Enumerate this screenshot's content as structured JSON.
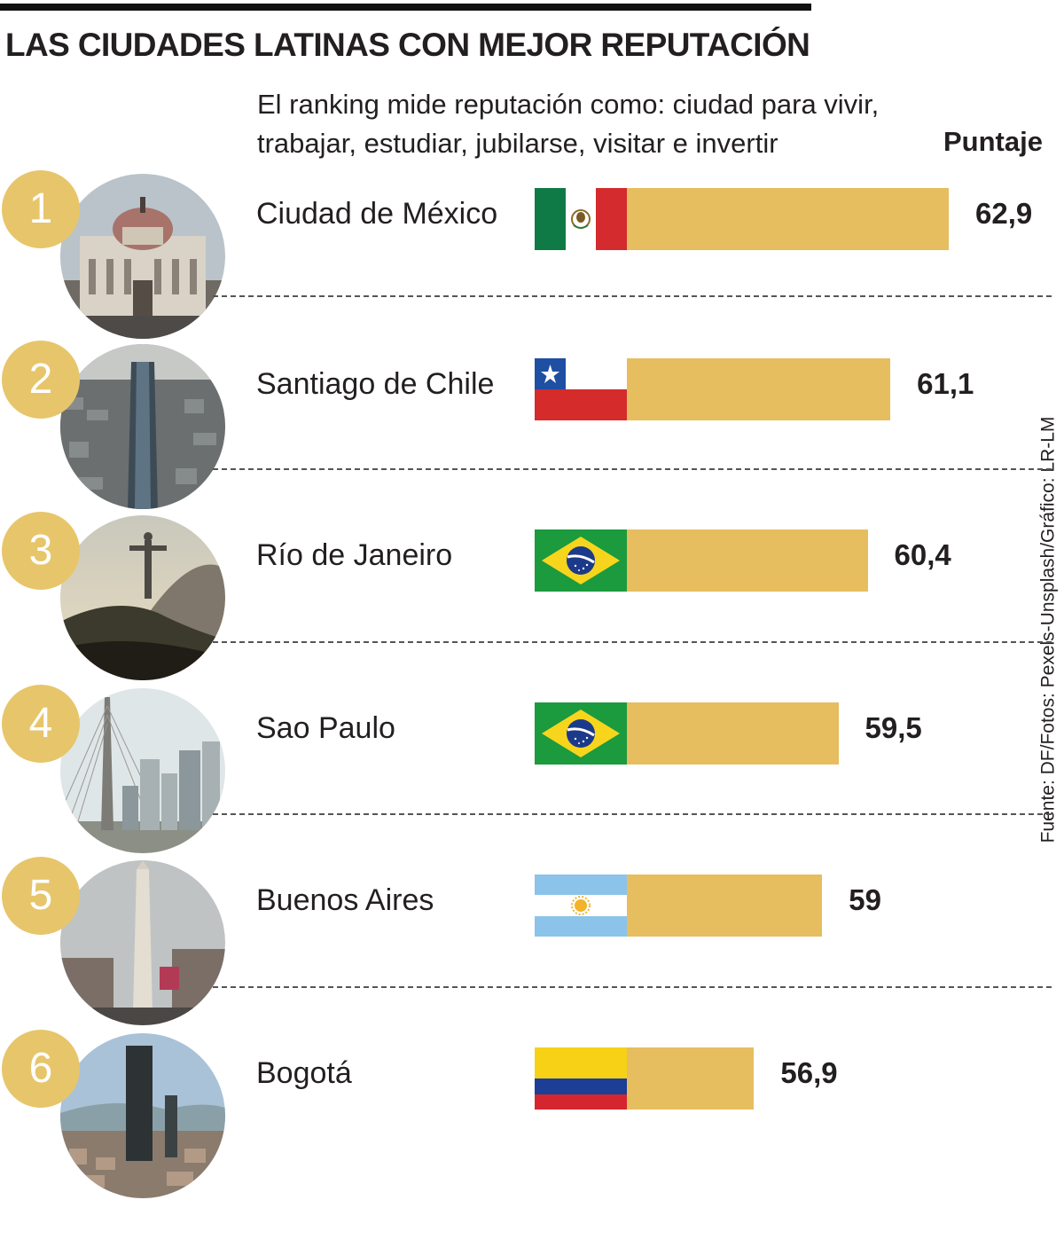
{
  "title": "LAS CIUDADES LATINAS CON MEJOR REPUTACIÓN",
  "subtitle": "El ranking mide reputación como: ciudad para vivir, trabajar, estudiar, jubilarse, visitar e invertir",
  "value_header": "Puntaje",
  "source": "Fuente: DF/Fotos: Pexels-Unsplash/Gráfico: LR-LM",
  "colors": {
    "bar": "#e6bd5f",
    "badge": "#e7c56b",
    "text": "#231f20"
  },
  "chart_data": {
    "type": "bar",
    "orientation": "horizontal",
    "title": "LAS CIUDADES LATINAS CON MEJOR REPUTACIÓN",
    "subtitle": "El ranking mide reputación como: ciudad para vivir, trabajar, estudiar, jubilarse, visitar e invertir",
    "value_label": "Puntaje",
    "categories": [
      "Ciudad de México",
      "Santiago de Chile",
      "Río de Janeiro",
      "Sao Paulo",
      "Buenos Aires",
      "Bogotá"
    ],
    "values": [
      62.9,
      61.1,
      60.4,
      59.5,
      59,
      56.9
    ],
    "value_labels": [
      "62,9",
      "61,1",
      "60,4",
      "59,5",
      "59",
      "56,9"
    ],
    "ranks": [
      "1",
      "2",
      "3",
      "4",
      "5",
      "6"
    ],
    "flags": [
      "mexico-flag",
      "chile-flag",
      "brazil-flag",
      "brazil-flag",
      "argentina-flag",
      "colombia-flag"
    ],
    "photos": [
      "palacio-bellas-artes-photo",
      "santiago-skyline-photo",
      "cristo-redentor-photo",
      "sao-paulo-bridge-photo",
      "obelisco-photo",
      "bogota-skyline-photo"
    ],
    "grid": false,
    "legend": "none"
  }
}
